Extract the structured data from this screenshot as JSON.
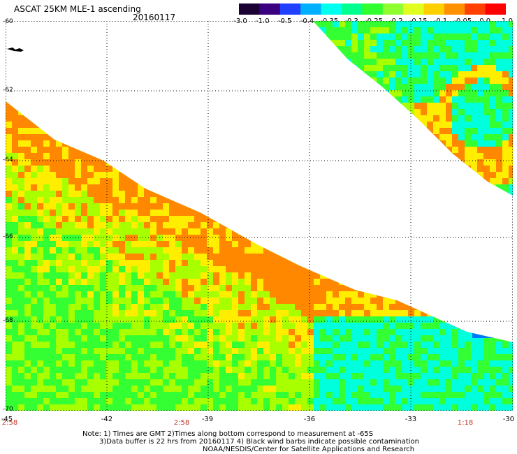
{
  "header": {
    "title": "ASCAT 25KM MLE-1 ascending",
    "date": "20160117"
  },
  "colorbar": {
    "labels": [
      "-3.0",
      "-1.0",
      "-0.5",
      "-0.4",
      "-0.35",
      "-0.3",
      "-0.25",
      "-0.2",
      "-0.15",
      "-0.1",
      "-0.05",
      "0.0",
      "1.0"
    ],
    "colors": [
      "#1a0033",
      "#3a0080",
      "#2040ff",
      "#00b0ff",
      "#00ffee",
      "#00ff90",
      "#30ff30",
      "#90ff30",
      "#e0ff20",
      "#ffd000",
      "#ff9000",
      "#ff4000",
      "#ff0000"
    ]
  },
  "axes": {
    "lat_labels": [
      "-60",
      "-62",
      "-64",
      "-66",
      "-68",
      "-70"
    ],
    "lon_labels": [
      "-45",
      "-42",
      "-39",
      "-36",
      "-33",
      "-30"
    ]
  },
  "times": [
    "2:58",
    "2:58",
    "1:18"
  ],
  "notes": [
    "Note: 1) Times are GMT 2)Times along bottom correspond to measurement at -65S",
    "3)Data buffer is 22 hrs from 20160117 4) Black wind barbs indicate possible contamination",
    "NOAA/NESDIS/Center for Satellite Applications and Research"
  ],
  "palette": {
    "orange": "#ff8800",
    "yellow": "#ffee00",
    "ygreen": "#a8ff00",
    "green": "#33ff33",
    "cyan": "#00ffdd",
    "blue": "#0077ff"
  }
}
